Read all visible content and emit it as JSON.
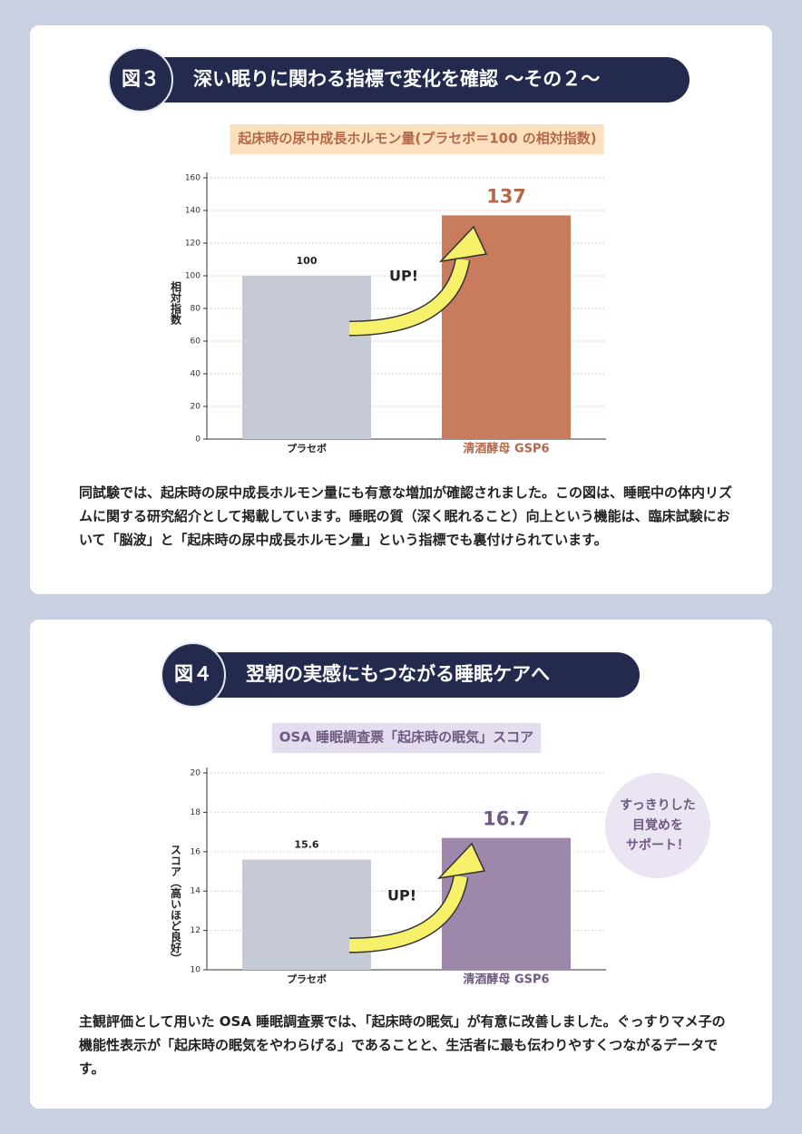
{
  "chart_data": [
    {
      "type": "bar",
      "badge": "図３",
      "heading": "深い眠りに関わる指標で変化を確認 〜その２〜",
      "title": "起床時の尿中成長ホルモン量(プラセボ＝100 の相対指数)",
      "ylabel": "相対指数",
      "categories": [
        "プラセボ",
        "清酒酵母 GSP6"
      ],
      "values": [
        100,
        137
      ],
      "colors": [
        "#c5cad4",
        "#c97b5e"
      ],
      "accent": "#b5694b",
      "ylim": [
        0,
        160
      ],
      "yticks": [
        0,
        20,
        40,
        60,
        80,
        100,
        120,
        140,
        160
      ],
      "grid": true,
      "annotation": "UP!",
      "caption": "同試験では、起床時の尿中成長ホルモン量にも有意な増加が確認されました。この図は、睡眠中の体内リズムに関する研究紹介として掲載しています。睡眠の質（深く眠れること）向上という機能は、臨床試験において「脳波」と「起床時の尿中成長ホルモン量」という指標でも裏付けられています。"
    },
    {
      "type": "bar",
      "badge": "図４",
      "heading": "翌朝の実感にもつながる睡眠ケアへ",
      "title": "OSA 睡眠調査票「起床時の眠気」スコア",
      "ylabel": "スコア（高いほど良好）",
      "categories": [
        "プラセボ",
        "清酒酵母 GSP6"
      ],
      "values": [
        15.6,
        16.7
      ],
      "colors": [
        "#c5cad4",
        "#9d88ac"
      ],
      "accent": "#6f5a82",
      "ylim": [
        10,
        20
      ],
      "yticks": [
        10,
        12,
        14,
        16,
        18,
        20
      ],
      "grid": true,
      "annotation": "UP!",
      "callout": [
        "すっきりした",
        "目覚めを",
        "サポート！"
      ],
      "caption": "主観評価として用いた OSA 睡眠調査票では、「起床時の眠気」が有意に改善しました。ぐっすりマメ子の機能性表示が「起床時の眠気をやわらげる」であることと、生活者に最も伝わりやすくつながるデータです。"
    }
  ]
}
